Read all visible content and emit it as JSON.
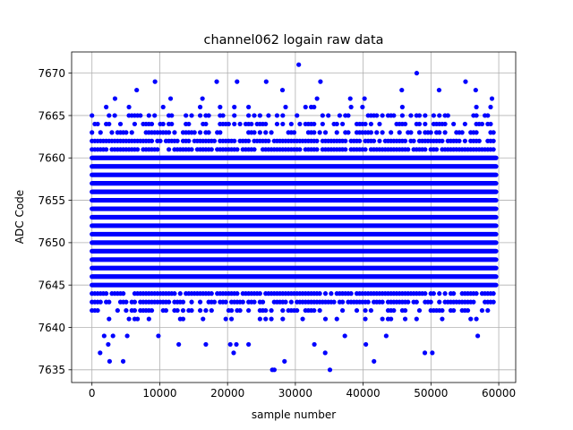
{
  "chart_data": {
    "type": "scatter",
    "title": "channel062 logain raw data",
    "xlabel": "sample number",
    "ylabel": "ADC Code",
    "xlim": [
      -3000,
      62500
    ],
    "ylim": [
      7633.5,
      7672.5
    ],
    "xticks": [
      0,
      10000,
      20000,
      30000,
      40000,
      50000,
      60000
    ],
    "yticks": [
      7635,
      7640,
      7645,
      7650,
      7655,
      7660,
      7665,
      7670
    ],
    "grid": true,
    "color": "#0000ff",
    "series": [
      {
        "x_range": [
          0,
          59600
        ],
        "dense_bands": [
          {
            "code": 7641,
            "frac": 0.25
          },
          {
            "code": 7642,
            "frac": 0.45
          },
          {
            "code": 7643,
            "frac": 0.75
          },
          {
            "code": 7644,
            "frac": 0.85
          },
          {
            "code": 7645,
            "frac": 1.0
          },
          {
            "code": 7646,
            "frac": 1.0
          },
          {
            "code": 7647,
            "frac": 1.0
          },
          {
            "code": 7648,
            "frac": 1.0
          },
          {
            "code": 7649,
            "frac": 1.0
          },
          {
            "code": 7650,
            "frac": 1.0
          },
          {
            "code": 7651,
            "frac": 1.0
          },
          {
            "code": 7652,
            "frac": 1.0
          },
          {
            "code": 7653,
            "frac": 1.0
          },
          {
            "code": 7654,
            "frac": 1.0
          },
          {
            "code": 7655,
            "frac": 1.0
          },
          {
            "code": 7656,
            "frac": 1.0
          },
          {
            "code": 7657,
            "frac": 1.0
          },
          {
            "code": 7658,
            "frac": 1.0
          },
          {
            "code": 7659,
            "frac": 1.0
          },
          {
            "code": 7660,
            "frac": 1.0
          },
          {
            "code": 7661,
            "frac": 0.9
          },
          {
            "code": 7662,
            "frac": 0.8
          },
          {
            "code": 7663,
            "frac": 0.55
          },
          {
            "code": 7664,
            "frac": 0.45
          },
          {
            "code": 7665,
            "frac": 0.3
          },
          {
            "code": 7666,
            "frac": 0.12
          }
        ],
        "outliers": [
          [
            1200,
            7637
          ],
          [
            1800,
            7639
          ],
          [
            2400,
            7638
          ],
          [
            2600,
            7636
          ],
          [
            3100,
            7639
          ],
          [
            4600,
            7636
          ],
          [
            5200,
            7639
          ],
          [
            9800,
            7639
          ],
          [
            12800,
            7638
          ],
          [
            16800,
            7638
          ],
          [
            20400,
            7638
          ],
          [
            20900,
            7637
          ],
          [
            21300,
            7638
          ],
          [
            23100,
            7638
          ],
          [
            26600,
            7635
          ],
          [
            26900,
            7635
          ],
          [
            28400,
            7636
          ],
          [
            32800,
            7638
          ],
          [
            34400,
            7637
          ],
          [
            35100,
            7635
          ],
          [
            37300,
            7639
          ],
          [
            40400,
            7638
          ],
          [
            41600,
            7636
          ],
          [
            43400,
            7639
          ],
          [
            49100,
            7637
          ],
          [
            50200,
            7637
          ],
          [
            56900,
            7639
          ],
          [
            3400,
            7667
          ],
          [
            6600,
            7668
          ],
          [
            9300,
            7669
          ],
          [
            11600,
            7667
          ],
          [
            16300,
            7667
          ],
          [
            18400,
            7669
          ],
          [
            21400,
            7669
          ],
          [
            25700,
            7669
          ],
          [
            28100,
            7668
          ],
          [
            30500,
            7671
          ],
          [
            33200,
            7667
          ],
          [
            33700,
            7669
          ],
          [
            38100,
            7667
          ],
          [
            40200,
            7667
          ],
          [
            45700,
            7668
          ],
          [
            47900,
            7670
          ],
          [
            51200,
            7668
          ],
          [
            55100,
            7669
          ],
          [
            56600,
            7668
          ],
          [
            59000,
            7667
          ]
        ]
      }
    ]
  }
}
